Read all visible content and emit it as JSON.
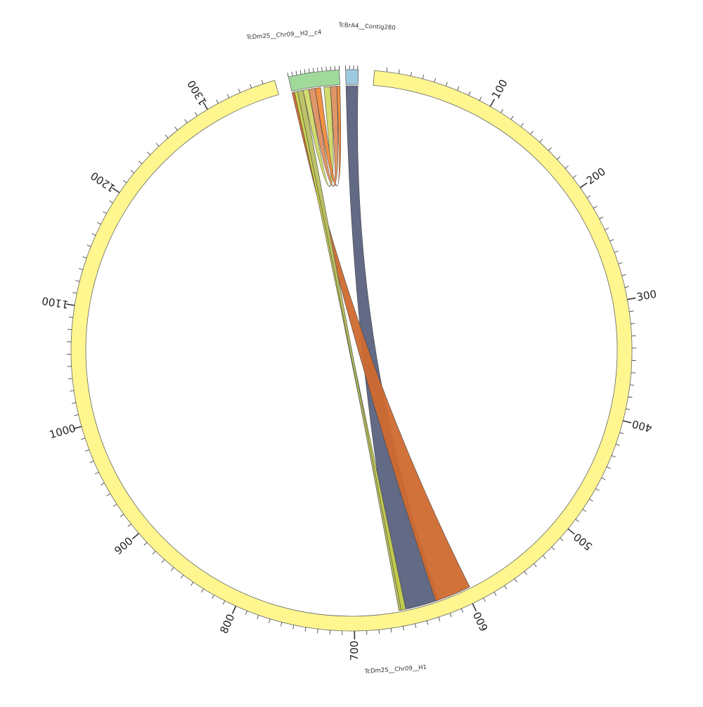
{
  "diagram": {
    "type": "circos-synteny",
    "segments": [
      {
        "id": "h1",
        "name": "TcDm25__Chr09__H1",
        "length": 1360,
        "color": "#fff68f"
      },
      {
        "id": "c4",
        "name": "TcDm25__Chr09__H2__c4",
        "length": 120,
        "color": "#a1d99b"
      },
      {
        "id": "contig",
        "name": "TcBrA4__Contig280",
        "length": 32,
        "color": "#9ecae1"
      }
    ],
    "major_tick_labels": [
      "100",
      "200",
      "300",
      "400",
      "500",
      "600",
      "700",
      "800",
      "900",
      "1000",
      "1100",
      "1200",
      "1300"
    ],
    "links": [
      {
        "from": "contig",
        "from_range": [
          0,
          32
        ],
        "to": "h1",
        "to_range": [
          625,
          660
        ],
        "color": "#5a6280"
      },
      {
        "from": "c4",
        "from_range": [
          0,
          6
        ],
        "to": "h1",
        "to_range": [
          596,
          628
        ],
        "color": "#cf6a30"
      },
      {
        "from": "c4",
        "from_range": [
          6,
          14
        ],
        "to": "h1",
        "to_range": [
          655,
          660
        ],
        "color": "#c8d14a"
      },
      {
        "from": "c4",
        "from_range": [
          14,
          28
        ],
        "to": "h1",
        "to_range": [
          659,
          661
        ],
        "color": "#b8c060"
      },
      {
        "from": "c4",
        "from_range": [
          28,
          42
        ],
        "to": "c4",
        "to_range": [
          80,
          96
        ],
        "color": "#d2d968"
      },
      {
        "from": "c4",
        "from_range": [
          42,
          58
        ],
        "to": "c4",
        "to_range": [
          96,
          112
        ],
        "color": "#dd9060"
      },
      {
        "from": "c4",
        "from_range": [
          58,
          72
        ],
        "to": "c4",
        "to_range": [
          112,
          120
        ],
        "color": "#f08a3c"
      }
    ]
  }
}
